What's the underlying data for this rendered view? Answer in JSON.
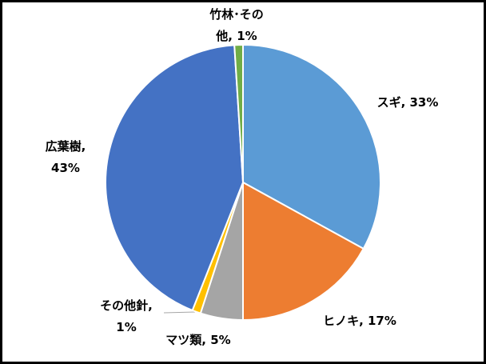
{
  "chart_data": {
    "type": "pie",
    "values": [
      33,
      17,
      5,
      1,
      43,
      1
    ],
    "value_labels": [
      "スギ, 33%",
      "ヒノキ, 17%",
      "マツ類, 5%",
      "その他針,\n1%",
      "広葉樹,\n43%",
      "竹林･その\n他, 1%"
    ],
    "colors": [
      "#5b9bd5",
      "#ed7d31",
      "#a5a5a5",
      "#ffc000",
      "#4472c4",
      "#70ad47"
    ]
  }
}
